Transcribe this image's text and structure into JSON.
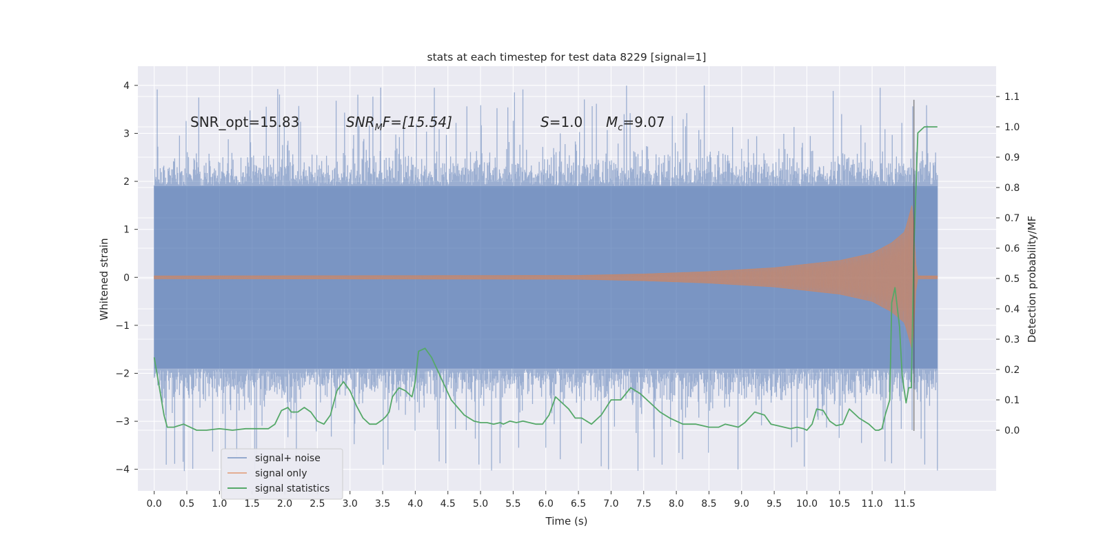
{
  "chart_data": {
    "type": "line",
    "title": "stats at each timestep for test data 8229 [signal=1]",
    "xlabel": "Time (s)",
    "ylabel_left": "Whitened strain",
    "ylabel_right": "Detection probability/MF",
    "xlim": [
      -0.25,
      12.9
    ],
    "ylim_left": [
      -4.45,
      4.4
    ],
    "ylim_right": [
      -0.2,
      1.2
    ],
    "x_ticks": [
      "0.0",
      "0.5",
      "1.0",
      "1.5",
      "2.0",
      "2.5",
      "3.0",
      "3.5",
      "4.0",
      "4.5",
      "5.0",
      "5.5",
      "6.0",
      "6.5",
      "7.0",
      "7.5",
      "8.0",
      "8.5",
      "9.0",
      "9.5",
      "10.0",
      "10.5",
      "11.0",
      "11.5"
    ],
    "y_ticks_left": [
      "4",
      "3",
      "2",
      "1",
      "0",
      "−1",
      "−2",
      "−3",
      "−4"
    ],
    "y_ticks_right": [
      "1.1",
      "1.0",
      "0.9",
      "0.8",
      "0.7",
      "0.6",
      "0.5",
      "0.4",
      "0.3",
      "0.2",
      "0.1",
      "0.0"
    ],
    "grid": true,
    "legend_position": "lower-left",
    "background_color": "#eaeaf2",
    "annotations": {
      "snr_opt": "SNR_opt=15.83",
      "snr_mf_base": "SNR",
      "snr_mf_sub": "M",
      "snr_mf_rest": "F=[15.54]",
      "s_base": "S",
      "s_rest": "=1.0",
      "mc_base": "M",
      "mc_sub": "c",
      "mc_rest": "=9.07"
    },
    "series": [
      {
        "name": "signal+ noise",
        "color": "#4c72b0",
        "opacity": 0.5,
        "axis": "left",
        "x_range": [
          0.0,
          12.0
        ],
        "typical_range": [
          -1.9,
          1.9
        ],
        "peak_max": 4.0,
        "peak_min": -4.05
      },
      {
        "name": "signal only",
        "color": "#dd8452",
        "opacity": 0.55,
        "axis": "left",
        "x_range": [
          0.0,
          12.0
        ],
        "envelope": {
          "x": [
            0.0,
            6.5,
            7.5,
            8.5,
            9.5,
            10.5,
            11.0,
            11.3,
            11.5,
            11.62,
            11.68,
            12.0
          ],
          "amp": [
            0.03,
            0.04,
            0.07,
            0.12,
            0.2,
            0.35,
            0.5,
            0.72,
            0.95,
            1.55,
            0.03,
            0.03
          ]
        }
      },
      {
        "name": "signal statistics",
        "color": "#55a868",
        "axis": "right",
        "x": [
          0.0,
          0.08,
          0.15,
          0.2,
          0.3,
          0.45,
          0.55,
          0.65,
          0.8,
          1.0,
          1.2,
          1.4,
          1.6,
          1.75,
          1.85,
          1.95,
          2.05,
          2.1,
          2.2,
          2.3,
          2.4,
          2.5,
          2.6,
          2.7,
          2.8,
          2.9,
          3.0,
          3.1,
          3.2,
          3.3,
          3.4,
          3.5,
          3.55,
          3.6,
          3.65,
          3.75,
          3.85,
          3.95,
          4.0,
          4.05,
          4.15,
          4.25,
          4.4,
          4.55,
          4.75,
          4.9,
          5.0,
          5.1,
          5.2,
          5.3,
          5.35,
          5.45,
          5.55,
          5.65,
          5.75,
          5.85,
          5.95,
          6.05,
          6.15,
          6.25,
          6.35,
          6.45,
          6.55,
          6.7,
          6.85,
          7.0,
          7.15,
          7.3,
          7.45,
          7.6,
          7.75,
          7.9,
          8.1,
          8.3,
          8.5,
          8.65,
          8.75,
          8.85,
          8.95,
          9.05,
          9.2,
          9.35,
          9.45,
          9.55,
          9.65,
          9.75,
          9.85,
          9.95,
          10.0,
          10.08,
          10.15,
          10.25,
          10.35,
          10.45,
          10.55,
          10.65,
          10.8,
          10.95,
          11.05,
          11.1,
          11.15,
          11.2,
          11.27,
          11.3,
          11.35,
          11.42,
          11.46,
          11.52,
          11.56,
          11.6,
          11.64,
          11.7,
          11.8,
          11.9,
          12.0
        ],
        "y": [
          0.24,
          0.14,
          0.05,
          0.01,
          0.01,
          0.02,
          0.01,
          0.0,
          0.0,
          0.005,
          0.0,
          0.005,
          0.005,
          0.005,
          0.02,
          0.065,
          0.075,
          0.06,
          0.06,
          0.075,
          0.06,
          0.03,
          0.02,
          0.05,
          0.13,
          0.16,
          0.13,
          0.08,
          0.04,
          0.02,
          0.02,
          0.035,
          0.045,
          0.06,
          0.11,
          0.14,
          0.13,
          0.11,
          0.16,
          0.26,
          0.27,
          0.24,
          0.17,
          0.1,
          0.05,
          0.03,
          0.025,
          0.025,
          0.02,
          0.025,
          0.02,
          0.03,
          0.025,
          0.03,
          0.025,
          0.02,
          0.02,
          0.05,
          0.11,
          0.09,
          0.07,
          0.04,
          0.04,
          0.02,
          0.05,
          0.1,
          0.1,
          0.14,
          0.12,
          0.09,
          0.06,
          0.04,
          0.02,
          0.02,
          0.01,
          0.01,
          0.02,
          0.015,
          0.01,
          0.025,
          0.06,
          0.05,
          0.02,
          0.015,
          0.01,
          0.005,
          0.01,
          0.005,
          0.0,
          0.02,
          0.07,
          0.065,
          0.03,
          0.015,
          0.02,
          0.07,
          0.04,
          0.02,
          0.0,
          0.0,
          0.005,
          0.05,
          0.1,
          0.42,
          0.47,
          0.34,
          0.18,
          0.09,
          0.14,
          0.14,
          0.6,
          0.98,
          1.0,
          1.0,
          1.0
        ]
      }
    ]
  }
}
